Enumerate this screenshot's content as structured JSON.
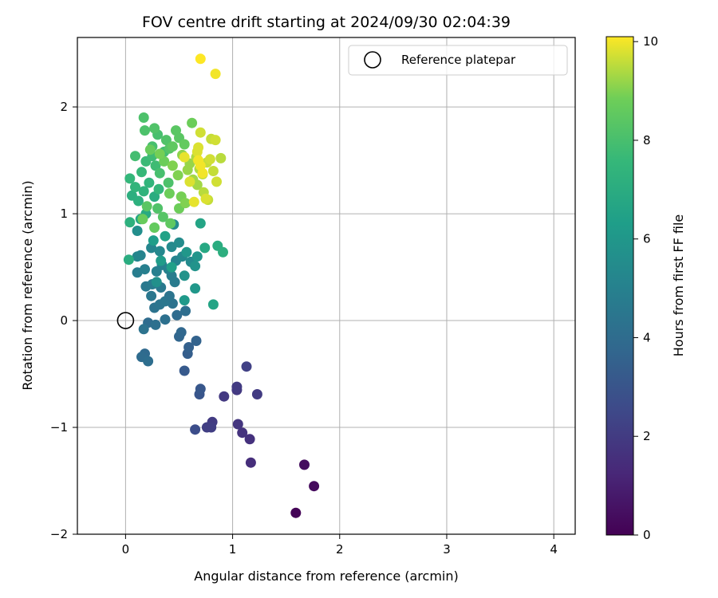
{
  "chart_data": {
    "type": "scatter",
    "title": "FOV centre drift starting at 2024/09/30 02:04:39",
    "xlabel": "Angular distance from reference (arcmin)",
    "ylabel": "Rotation from reference (arcmin)",
    "xlim": [
      -0.45,
      4.2
    ],
    "ylim": [
      -2.0,
      2.65
    ],
    "xticks": [
      "0",
      "1",
      "2",
      "3",
      "4"
    ],
    "yticks": [
      "−2",
      "−1",
      "0",
      "1",
      "2"
    ],
    "grid": true,
    "legend": {
      "position": "top-right",
      "entries": [
        "Reference platepar"
      ]
    },
    "reference_point": {
      "x": 0,
      "y": 0
    },
    "colorbar": {
      "label": "Hours from first FF file",
      "range": [
        0,
        10.1
      ],
      "ticks": [
        "0",
        "2",
        "4",
        "6",
        "8",
        "10"
      ],
      "colormap": "viridis"
    },
    "points": [
      [
        1.59,
        -1.8,
        0.1
      ],
      [
        1.76,
        -1.55,
        0.3
      ],
      [
        1.67,
        -1.35,
        0.4
      ],
      [
        1.17,
        -1.33,
        1.5
      ],
      [
        1.16,
        -1.11,
        1.6
      ],
      [
        1.09,
        -1.05,
        1.7
      ],
      [
        1.05,
        -0.97,
        1.8
      ],
      [
        0.81,
        -0.95,
        2.0
      ],
      [
        0.76,
        -1.0,
        2.1
      ],
      [
        0.8,
        -1.0,
        2.1
      ],
      [
        0.65,
        -1.02,
        2.7
      ],
      [
        0.92,
        -0.71,
        1.9
      ],
      [
        1.04,
        -0.65,
        1.9
      ],
      [
        1.04,
        -0.62,
        2.0
      ],
      [
        1.23,
        -0.69,
        2.0
      ],
      [
        1.13,
        -0.43,
        2.2
      ],
      [
        0.69,
        -0.69,
        3.0
      ],
      [
        0.7,
        -0.64,
        3.1
      ],
      [
        0.55,
        -0.47,
        3.2
      ],
      [
        0.58,
        -0.31,
        3.4
      ],
      [
        0.59,
        -0.25,
        3.5
      ],
      [
        0.66,
        -0.19,
        3.6
      ],
      [
        0.5,
        -0.15,
        3.7
      ],
      [
        0.52,
        -0.11,
        3.8
      ],
      [
        0.18,
        -0.31,
        3.9
      ],
      [
        0.15,
        -0.34,
        4.0
      ],
      [
        0.21,
        -0.38,
        4.1
      ],
      [
        0.21,
        -0.02,
        4.0
      ],
      [
        0.28,
        -0.04,
        4.2
      ],
      [
        0.17,
        -0.08,
        4.3
      ],
      [
        0.48,
        0.05,
        4.0
      ],
      [
        0.56,
        0.09,
        4.1
      ],
      [
        0.37,
        0.01,
        4.2
      ],
      [
        0.27,
        0.12,
        4.3
      ],
      [
        0.32,
        0.15,
        4.4
      ],
      [
        0.44,
        0.16,
        4.3
      ],
      [
        0.37,
        0.18,
        4.5
      ],
      [
        0.41,
        0.23,
        4.4
      ],
      [
        0.24,
        0.23,
        4.5
      ],
      [
        0.33,
        0.31,
        4.6
      ],
      [
        0.46,
        0.36,
        4.7
      ],
      [
        0.19,
        0.32,
        4.6
      ],
      [
        0.25,
        0.34,
        4.7
      ],
      [
        0.43,
        0.42,
        4.8
      ],
      [
        0.29,
        0.46,
        4.9
      ],
      [
        0.11,
        0.45,
        4.8
      ],
      [
        0.18,
        0.48,
        4.9
      ],
      [
        0.4,
        0.48,
        5.0
      ],
      [
        0.34,
        0.52,
        5.0
      ],
      [
        0.47,
        0.56,
        5.1
      ],
      [
        0.14,
        0.61,
        5.1
      ],
      [
        0.11,
        0.6,
        5.2
      ],
      [
        0.24,
        0.68,
        5.2
      ],
      [
        0.32,
        0.65,
        5.3
      ],
      [
        0.43,
        0.69,
        5.4
      ],
      [
        0.53,
        0.6,
        5.3
      ],
      [
        0.61,
        0.55,
        5.4
      ],
      [
        0.5,
        0.73,
        5.5
      ],
      [
        0.45,
        0.9,
        5.5
      ],
      [
        0.11,
        0.84,
        5.6
      ],
      [
        0.29,
        0.36,
        5.7
      ],
      [
        0.55,
        0.42,
        5.8
      ],
      [
        0.65,
        0.51,
        5.8
      ],
      [
        0.67,
        0.6,
        5.9
      ],
      [
        0.57,
        0.64,
        6.0
      ],
      [
        0.65,
        0.3,
        6.0
      ],
      [
        0.55,
        0.19,
        6.1
      ],
      [
        0.82,
        0.15,
        6.6
      ],
      [
        0.7,
        0.91,
        6.6
      ],
      [
        0.74,
        0.68,
        6.8
      ],
      [
        0.86,
        0.7,
        7.0
      ],
      [
        0.91,
        0.64,
        7.1
      ],
      [
        0.33,
        0.56,
        6.2
      ],
      [
        0.43,
        0.5,
        6.4
      ],
      [
        0.03,
        0.57,
        7.0
      ],
      [
        0.26,
        0.75,
        6.3
      ],
      [
        0.37,
        0.79,
        6.5
      ],
      [
        0.14,
        0.95,
        6.7
      ],
      [
        0.19,
        1.0,
        6.9
      ],
      [
        0.04,
        0.92,
        7.2
      ],
      [
        0.27,
        1.16,
        7.0
      ],
      [
        0.06,
        1.17,
        7.1
      ],
      [
        0.12,
        1.12,
        7.2
      ],
      [
        0.17,
        1.21,
        7.3
      ],
      [
        0.09,
        1.25,
        7.4
      ],
      [
        0.22,
        1.29,
        7.4
      ],
      [
        0.31,
        1.23,
        7.5
      ],
      [
        0.04,
        1.33,
        7.5
      ],
      [
        0.15,
        1.39,
        7.6
      ],
      [
        0.19,
        1.49,
        7.7
      ],
      [
        0.28,
        1.45,
        7.8
      ],
      [
        0.25,
        1.54,
        7.8
      ],
      [
        0.09,
        1.54,
        7.9
      ],
      [
        0.36,
        1.58,
        7.9
      ],
      [
        0.25,
        1.63,
        8.0
      ],
      [
        0.3,
        1.74,
        8.0
      ],
      [
        0.18,
        1.78,
        8.1
      ],
      [
        0.17,
        1.9,
        8.1
      ],
      [
        0.27,
        1.8,
        8.2
      ],
      [
        0.38,
        1.69,
        8.2
      ],
      [
        0.41,
        1.61,
        8.3
      ],
      [
        0.47,
        1.78,
        8.4
      ],
      [
        0.5,
        1.71,
        8.4
      ],
      [
        0.44,
        1.63,
        8.5
      ],
      [
        0.55,
        1.65,
        8.6
      ],
      [
        0.62,
        1.85,
        8.8
      ],
      [
        0.32,
        1.38,
        8.0
      ],
      [
        0.4,
        1.29,
        8.1
      ],
      [
        0.3,
        1.05,
        8.2
      ],
      [
        0.35,
        0.97,
        8.3
      ],
      [
        0.2,
        1.07,
        8.4
      ],
      [
        0.42,
        0.91,
        8.5
      ],
      [
        0.27,
        0.87,
        8.6
      ],
      [
        0.16,
        0.95,
        8.7
      ],
      [
        0.41,
        1.19,
        8.8
      ],
      [
        0.5,
        1.05,
        8.8
      ],
      [
        0.52,
        1.16,
        8.9
      ],
      [
        0.56,
        1.1,
        9.0
      ],
      [
        0.23,
        1.6,
        8.7
      ],
      [
        0.36,
        1.49,
        8.8
      ],
      [
        0.32,
        1.56,
        8.9
      ],
      [
        0.44,
        1.45,
        9.0
      ],
      [
        0.49,
        1.36,
        9.0
      ],
      [
        0.53,
        1.55,
        9.1
      ],
      [
        0.58,
        1.41,
        9.2
      ],
      [
        0.6,
        1.47,
        9.2
      ],
      [
        0.63,
        1.32,
        9.3
      ],
      [
        0.67,
        1.27,
        9.3
      ],
      [
        0.66,
        1.53,
        9.4
      ],
      [
        0.69,
        1.42,
        9.4
      ],
      [
        0.72,
        1.37,
        9.5
      ],
      [
        0.73,
        1.2,
        9.5
      ],
      [
        0.77,
        1.13,
        9.6
      ],
      [
        0.76,
        1.48,
        9.6
      ],
      [
        0.79,
        1.51,
        9.7
      ],
      [
        0.82,
        1.4,
        9.6
      ],
      [
        0.85,
        1.3,
        9.7
      ],
      [
        0.8,
        1.7,
        9.6
      ],
      [
        0.84,
        1.69,
        9.7
      ],
      [
        0.7,
        1.76,
        9.7
      ],
      [
        0.67,
        1.58,
        9.8
      ],
      [
        0.68,
        1.62,
        9.8
      ],
      [
        0.55,
        1.53,
        9.9
      ],
      [
        0.6,
        1.3,
        9.8
      ],
      [
        0.64,
        1.11,
        9.9
      ],
      [
        0.75,
        1.14,
        9.8
      ],
      [
        0.89,
        1.52,
        9.5
      ],
      [
        0.7,
        1.45,
        10.0
      ],
      [
        0.72,
        1.38,
        10.0
      ],
      [
        0.68,
        1.5,
        10.0
      ],
      [
        0.84,
        2.31,
        10.0
      ],
      [
        0.7,
        2.45,
        10.1
      ]
    ]
  }
}
